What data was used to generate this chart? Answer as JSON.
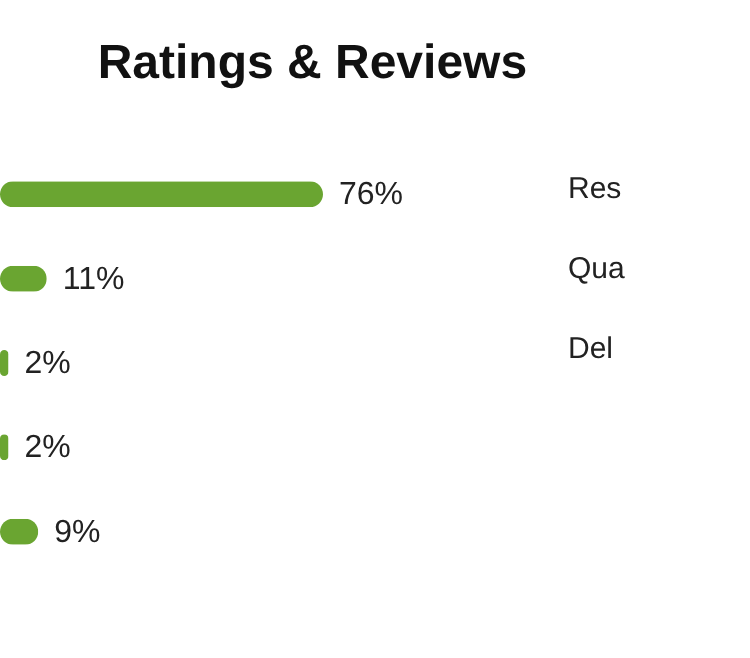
{
  "chart_data": {
    "type": "bar",
    "orientation": "horizontal",
    "title": "Ratings & Reviews",
    "categories": [
      null,
      null,
      null,
      null,
      null
    ],
    "values": [
      76,
      11,
      2,
      2,
      9
    ],
    "value_labels": [
      "76%",
      "11%",
      "2%",
      "2%",
      "9%"
    ],
    "color": "#6aa531",
    "annotations": [
      "Res",
      "Qua",
      "Del"
    ]
  }
}
